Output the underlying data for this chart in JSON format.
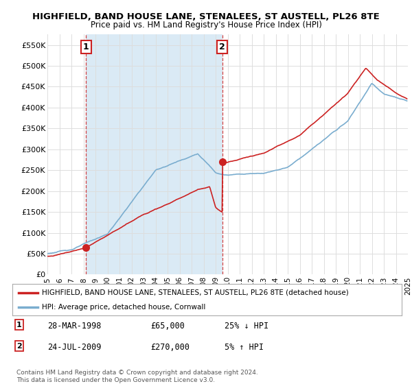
{
  "title": "HIGHFIELD, BAND HOUSE LANE, STENALEES, ST AUSTELL, PL26 8TE",
  "subtitle": "Price paid vs. HM Land Registry's House Price Index (HPI)",
  "transactions": [
    {
      "label": "1",
      "date": "28-MAR-1998",
      "price": 65000,
      "hpi_relation": "25% ↓ HPI",
      "x_year": 1998.22
    },
    {
      "label": "2",
      "date": "24-JUL-2009",
      "price": 270000,
      "hpi_relation": "5% ↑ HPI",
      "x_year": 2009.56
    }
  ],
  "legend_property": "HIGHFIELD, BAND HOUSE LANE, STENALEES, ST AUSTELL, PL26 8TE (detached house)",
  "legend_hpi": "HPI: Average price, detached house, Cornwall",
  "footer1": "Contains HM Land Registry data © Crown copyright and database right 2024.",
  "footer2": "This data is licensed under the Open Government Licence v3.0.",
  "x_start": 1995,
  "x_end": 2025,
  "y_min": 0,
  "y_max": 575000,
  "y_ticks": [
    0,
    50000,
    100000,
    150000,
    200000,
    250000,
    300000,
    350000,
    400000,
    450000,
    500000,
    550000
  ],
  "y_tick_labels": [
    "£0",
    "£50K",
    "£100K",
    "£150K",
    "£200K",
    "£250K",
    "£300K",
    "£350K",
    "£400K",
    "£450K",
    "£500K",
    "£550K"
  ],
  "hpi_color": "#7aadcf",
  "property_color": "#cc2222",
  "vline_color": "#cc2222",
  "shade_color": "#daeaf5",
  "background_color": "#ffffff",
  "grid_color": "#dddddd",
  "x_tick_years": [
    1995,
    1996,
    1997,
    1998,
    1999,
    2000,
    2001,
    2002,
    2003,
    2004,
    2005,
    2006,
    2007,
    2008,
    2009,
    2010,
    2011,
    2012,
    2013,
    2014,
    2015,
    2016,
    2017,
    2018,
    2019,
    2020,
    2021,
    2022,
    2023,
    2024,
    2025
  ]
}
